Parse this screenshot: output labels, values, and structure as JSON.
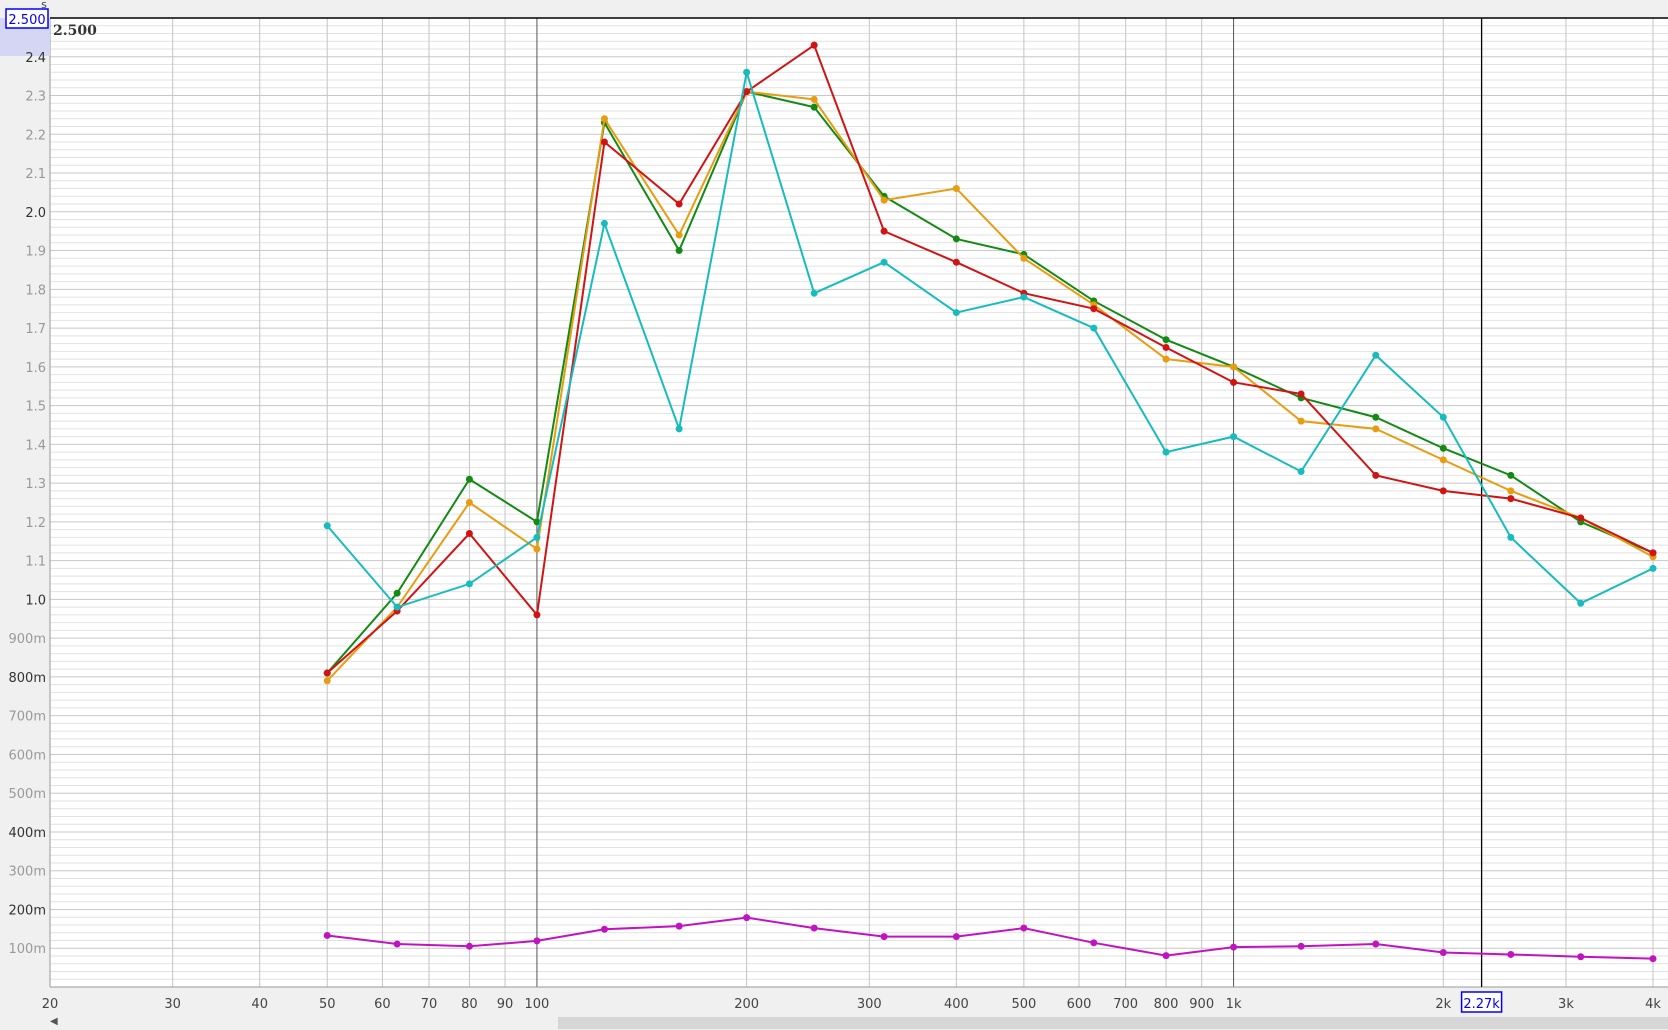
{
  "chart_data": {
    "type": "line",
    "title": "",
    "xlabel": "",
    "ylabel": "s",
    "x_scale": "log",
    "xlim": [
      20,
      4000
    ],
    "ylim": [
      0,
      2.5
    ],
    "grid": true,
    "x": [
      50,
      63,
      80,
      100,
      125,
      160,
      200,
      250,
      315,
      400,
      500,
      630,
      800,
      1000,
      1250,
      1600,
      2000,
      2500,
      3150,
      4000
    ],
    "x_tick_labels": [
      {
        "v": 20,
        "t": "20"
      },
      {
        "v": 30,
        "t": "30"
      },
      {
        "v": 40,
        "t": "40"
      },
      {
        "v": 50,
        "t": "50"
      },
      {
        "v": 60,
        "t": "60"
      },
      {
        "v": 70,
        "t": "70"
      },
      {
        "v": 80,
        "t": "80"
      },
      {
        "v": 90,
        "t": "90"
      },
      {
        "v": 100,
        "t": "100"
      },
      {
        "v": 200,
        "t": "200"
      },
      {
        "v": 300,
        "t": "300"
      },
      {
        "v": 400,
        "t": "400"
      },
      {
        "v": 500,
        "t": "500"
      },
      {
        "v": 600,
        "t": "600"
      },
      {
        "v": 700,
        "t": "700"
      },
      {
        "v": 800,
        "t": "800"
      },
      {
        "v": 900,
        "t": "900"
      },
      {
        "v": 1000,
        "t": "1k"
      },
      {
        "v": 2000,
        "t": "2k"
      },
      {
        "v": 3000,
        "t": "3k"
      },
      {
        "v": 4000,
        "t": "4k"
      }
    ],
    "y_tick_labels": [
      {
        "v": 2.4,
        "t": "2.4"
      },
      {
        "v": 2.3,
        "t": "2.3"
      },
      {
        "v": 2.2,
        "t": "2.2"
      },
      {
        "v": 2.1,
        "t": "2.1"
      },
      {
        "v": 2.0,
        "t": "2.0"
      },
      {
        "v": 1.9,
        "t": "1.9"
      },
      {
        "v": 1.8,
        "t": "1.8"
      },
      {
        "v": 1.7,
        "t": "1.7"
      },
      {
        "v": 1.6,
        "t": "1.6"
      },
      {
        "v": 1.5,
        "t": "1.5"
      },
      {
        "v": 1.4,
        "t": "1.4"
      },
      {
        "v": 1.3,
        "t": "1.3"
      },
      {
        "v": 1.2,
        "t": "1.2"
      },
      {
        "v": 1.1,
        "t": "1.1"
      },
      {
        "v": 1.0,
        "t": "1.0"
      },
      {
        "v": 0.9,
        "t": "900m"
      },
      {
        "v": 0.8,
        "t": "800m"
      },
      {
        "v": 0.7,
        "t": "700m"
      },
      {
        "v": 0.6,
        "t": "600m"
      },
      {
        "v": 0.5,
        "t": "500m"
      },
      {
        "v": 0.4,
        "t": "400m"
      },
      {
        "v": 0.3,
        "t": "300m"
      },
      {
        "v": 0.2,
        "t": "200m"
      },
      {
        "v": 0.1,
        "t": "100m"
      }
    ],
    "series": [
      {
        "color": "#148a14",
        "values": [
          0.81,
          1.016,
          1.31,
          1.2,
          2.23,
          1.9,
          2.31,
          2.27,
          2.04,
          1.93,
          1.89,
          1.77,
          1.67,
          1.6,
          1.52,
          1.47,
          1.39,
          1.32,
          1.2,
          1.12
        ]
      },
      {
        "color": "#e89c10",
        "values": [
          0.79,
          0.98,
          1.25,
          1.13,
          2.24,
          1.94,
          2.31,
          2.29,
          2.03,
          2.06,
          1.88,
          1.76,
          1.62,
          1.6,
          1.46,
          1.44,
          1.36,
          1.28,
          1.21,
          1.11
        ]
      },
      {
        "color": "#d01414",
        "values": [
          0.81,
          0.97,
          1.17,
          0.96,
          2.18,
          2.02,
          2.31,
          2.43,
          1.95,
          1.87,
          1.79,
          1.75,
          1.65,
          1.56,
          1.53,
          1.32,
          1.28,
          1.26,
          1.21,
          1.12
        ]
      },
      {
        "color": "#18bcbc",
        "values": [
          1.19,
          0.98,
          1.04,
          1.16,
          1.97,
          1.44,
          2.36,
          1.79,
          1.87,
          1.74,
          1.78,
          1.7,
          1.38,
          1.42,
          1.33,
          1.63,
          1.47,
          1.16,
          0.99,
          1.08
        ]
      },
      {
        "color": "#c014c0",
        "values": [
          0.133,
          0.111,
          0.105,
          0.119,
          0.149,
          0.157,
          0.179,
          0.152,
          0.13,
          0.13,
          0.152,
          0.114,
          0.081,
          0.103,
          0.105,
          0.111,
          0.089,
          0.084,
          0.078,
          0.073
        ]
      }
    ],
    "cursor": {
      "x": 2270,
      "x_label": "2.27k",
      "y": 2.5,
      "y_label": "2.500",
      "value_label": "2.500"
    },
    "cursor_color": "#0000ff"
  }
}
